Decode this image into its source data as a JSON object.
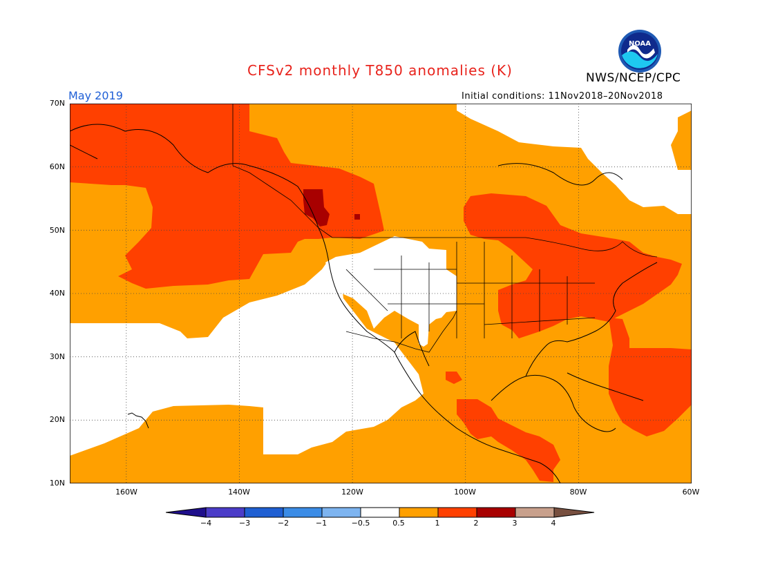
{
  "header": {
    "title": "CFSv2 monthly T850 anomalies (K)",
    "agency": "NWS/NCEP/CPC",
    "month": "May 2019",
    "initial_conditions": "Initial conditions: 11Nov2018–20Nov2018",
    "logo_text": "NOAA"
  },
  "axes": {
    "lat_labels": [
      "70N",
      "60N",
      "50N",
      "40N",
      "30N",
      "20N",
      "10N"
    ],
    "lon_labels": [
      "160W",
      "140W",
      "120W",
      "100W",
      "80W",
      "60W"
    ]
  },
  "colorbar": {
    "labels": [
      "−4",
      "−3",
      "−2",
      "−1",
      "−0.5",
      "0.5",
      "1",
      "2",
      "3",
      "4"
    ],
    "colors": [
      "#1f0f8c",
      "#4b3cc8",
      "#1f5fd2",
      "#3b8ce6",
      "#7db4f0",
      "#ffffff",
      "#ffa000",
      "#ff4000",
      "#a80000",
      "#c8a08c",
      "#785040"
    ]
  },
  "map": {
    "extent": {
      "lon": [
        -170,
        -60
      ],
      "lat": [
        10,
        70
      ]
    },
    "anomaly_colors": {
      "none": "#ffffff",
      "warm": "#ffa000",
      "warmer": "#ff4000",
      "hot": "#a80000"
    }
  }
}
